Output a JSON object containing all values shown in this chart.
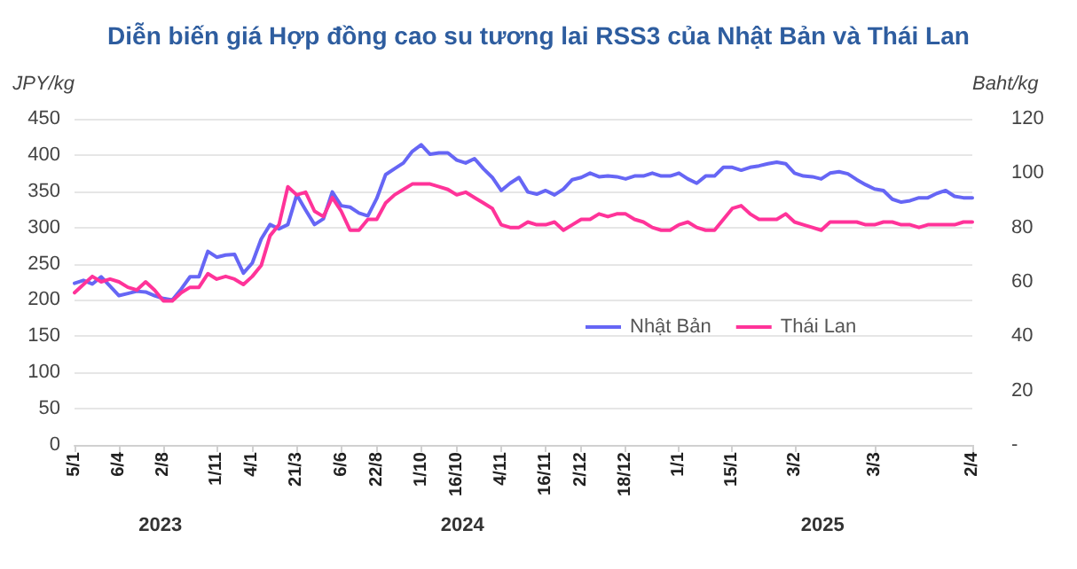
{
  "chart_data": {
    "type": "line",
    "title": "Diễn biến giá Hợp đồng cao su tương lai RSS3 của Nhật Bản và Thái Lan",
    "categories": [
      "5/1",
      null,
      null,
      null,
      null,
      "6/4",
      null,
      null,
      null,
      null,
      "2/8",
      null,
      null,
      null,
      null,
      null,
      "1/11",
      null,
      null,
      null,
      "4/1",
      null,
      null,
      null,
      null,
      "21/3",
      null,
      null,
      null,
      null,
      "6/6",
      null,
      null,
      null,
      "22/8",
      null,
      null,
      null,
      null,
      "1/10",
      null,
      null,
      null,
      "16/10",
      null,
      null,
      null,
      null,
      "4/11",
      null,
      null,
      null,
      null,
      "16/11",
      null,
      null,
      null,
      "2/12",
      null,
      null,
      null,
      null,
      "18/12",
      null,
      null,
      null,
      null,
      null,
      "1/1",
      null,
      null,
      null,
      null,
      null,
      "15/1",
      null,
      null,
      null,
      null,
      null,
      null,
      "3/2",
      null,
      null,
      null,
      null,
      null,
      null,
      null,
      null,
      "3/3",
      null,
      null,
      null,
      null,
      null,
      null,
      null,
      null,
      null,
      null,
      "2/4"
    ],
    "ylabel": "JPY/kg",
    "y2label": "Baht/kg",
    "ylim": [
      0,
      450
    ],
    "yticks": [
      0,
      50,
      100,
      150,
      200,
      250,
      300,
      350,
      400,
      450
    ],
    "y2lim": [
      0,
      120
    ],
    "y2ticks": [
      {
        "value": 0,
        "label": "-"
      },
      20,
      40,
      60,
      80,
      100,
      120
    ],
    "grid": "y",
    "legend": "right",
    "marker": "none",
    "line_style": "solid",
    "annotations": [
      "2023",
      "2024",
      "2025"
    ],
    "series": [
      {
        "name": "Nhật Bản",
        "color": "#6666f5",
        "values": [
          223,
          227,
          222,
          232,
          219,
          206,
          209,
          212,
          211,
          206,
          202,
          200,
          215,
          232,
          232,
          267,
          259,
          262,
          263,
          237,
          251,
          284,
          304,
          298,
          304,
          345,
          324,
          304,
          312,
          349,
          330,
          328,
          320,
          316,
          340,
          373,
          381,
          389,
          405,
          414,
          401,
          403,
          403,
          393,
          389,
          395,
          381,
          369,
          351,
          361,
          369,
          349,
          346,
          351,
          345,
          353,
          366,
          369,
          375,
          370,
          371,
          370,
          367,
          371,
          371,
          375,
          371,
          371,
          375,
          367,
          361,
          371,
          371,
          383,
          383,
          379,
          383,
          385,
          388,
          390,
          388,
          375,
          371,
          370,
          367,
          375,
          377,
          374,
          366,
          359,
          353,
          351,
          339,
          335,
          337,
          341,
          341,
          347,
          351,
          343,
          341,
          341
        ]
      },
      {
        "name": "Thái Lan",
        "color": "#ff3399",
        "axis": "y2",
        "values": [
          56,
          59,
          62,
          60,
          61,
          60,
          58,
          57,
          60,
          57,
          53,
          53,
          56,
          58,
          58,
          63,
          61,
          62,
          61,
          59,
          62,
          66,
          77,
          81,
          95,
          92,
          93,
          86,
          84,
          91,
          86,
          79,
          79,
          83,
          83,
          89,
          92,
          94,
          96,
          96,
          96,
          95,
          94,
          92,
          93,
          91,
          89,
          87,
          81,
          80,
          80,
          82,
          81,
          81,
          82,
          79,
          81,
          83,
          83,
          85,
          84,
          85,
          85,
          83,
          82,
          80,
          79,
          79,
          81,
          82,
          80,
          79,
          79,
          83,
          87,
          88,
          85,
          83,
          83,
          83,
          85,
          82,
          81,
          80,
          79,
          82,
          82,
          82,
          82,
          81,
          81,
          82,
          82,
          81,
          81,
          80,
          81,
          81,
          81,
          81,
          82,
          82
        ]
      }
    ]
  }
}
